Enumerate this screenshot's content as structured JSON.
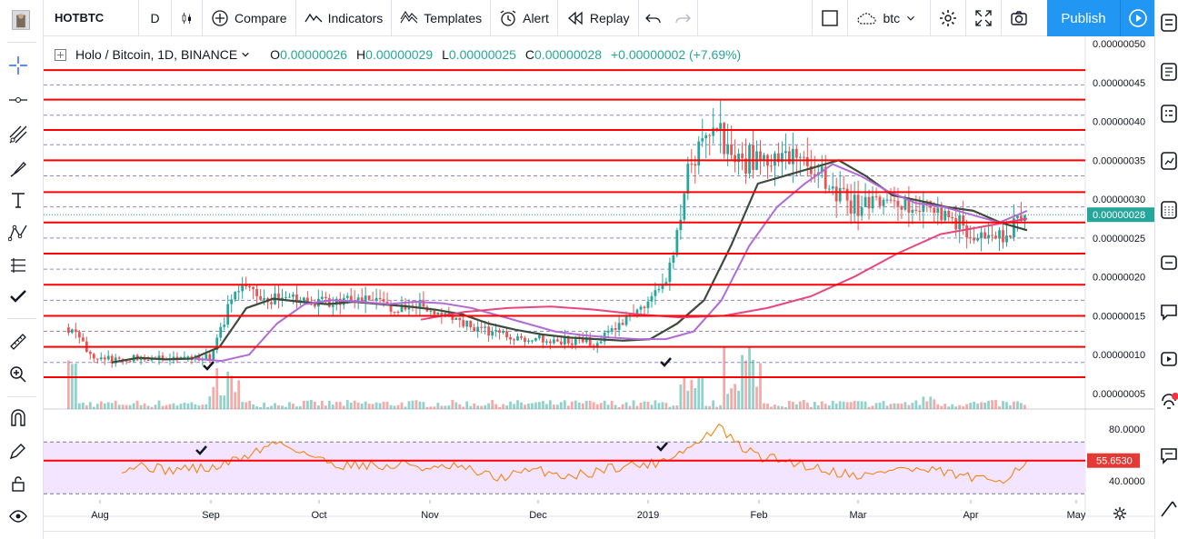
{
  "toolbar": {
    "symbol": "HOTBTC",
    "interval": "D",
    "compare": "Compare",
    "indicators": "Indicators",
    "templates": "Templates",
    "alert": "Alert",
    "replay": "Replay",
    "layout_name": "btc",
    "publish": "Publish"
  },
  "legend": {
    "title": "Holo / Bitcoin, 1D, BINANCE",
    "o_label": "O",
    "o": "0.00000026",
    "h_label": "H",
    "h": "0.00000029",
    "l_label": "L",
    "l": "0.00000025",
    "c_label": "C",
    "c": "0.00000028",
    "change": "+0.00000002 (+7.69%)"
  },
  "colors": {
    "accent": "#2196f3",
    "up": "#26a69a",
    "down": "#ef5350",
    "hline": "#ff0000",
    "dash": "#3f3fa8",
    "ma_fast": "#ffd600",
    "ma_dark": "#3d4b3a",
    "ma_purple": "#b26ad6",
    "ma_pink": "#e8467c",
    "rsi": "#f57c00",
    "rsi_band": "#f3e5ff",
    "price_badge": "#26a69a",
    "rsi_badge": "#e53935"
  },
  "chart_data": {
    "type": "candlestick",
    "symbol": "Holo / Bitcoin",
    "timeframe": "1D",
    "exchange": "BINANCE",
    "x_labels": [
      "Aug",
      "Sep",
      "Oct",
      "Nov",
      "Dec",
      "2019",
      "Feb",
      "Mar",
      "Apr",
      "May"
    ],
    "y_labels": [
      "0.00000050",
      "0.00000045",
      "0.00000040",
      "0.00000035",
      "0.00000030",
      "0.00000025",
      "0.00000020",
      "0.00000015",
      "0.00000010",
      "0.00000005"
    ],
    "y_range": [
      2e-08,
      5.1e-07
    ],
    "last_price": "0.00000028",
    "price_series_close": [
      1.35e-07,
      1e-07,
      9.2e-08,
      9.8e-08,
      9.5e-08,
      9.4e-08,
      9.8e-08,
      1.9e-07,
      1.75e-07,
      1.72e-07,
      1.68e-07,
      1.66e-07,
      1.7e-07,
      1.65e-07,
      1.6e-07,
      1.63e-07,
      1.5e-07,
      1.32e-07,
      1.28e-07,
      1.22e-07,
      1.2e-07,
      1.18e-07,
      1.16e-07,
      1.4e-07,
      1.65e-07,
      1.9e-07,
      3.5e-07,
      4e-07,
      3.45e-07,
      3.6e-07,
      3.55e-07,
      3.45e-07,
      3.1e-07,
      2.9e-07,
      3e-07,
      2.9e-07,
      2.85e-07,
      2.75e-07,
      2.55e-07,
      2.5e-07,
      2.8e-07
    ],
    "horizontal_levels": [
      4.66e-07,
      4.28e-07,
      3.89e-07,
      3.5e-07,
      3.09e-07,
      2.7e-07,
      2.3e-07,
      1.9e-07,
      1.5e-07,
      1.1e-07,
      7.1e-08
    ],
    "dashed_levels": [
      4.47e-07,
      4.08e-07,
      3.7e-07,
      3.3e-07,
      2.9e-07,
      2.5e-07,
      2.1e-07,
      1.7e-07,
      1.3e-07,
      9e-08
    ],
    "ma_series": [
      {
        "values": [
          9e-08,
          9.6e-08,
          9.4e-08,
          9.5e-08,
          1.1e-07,
          1.6e-07,
          1.72e-07,
          1.68e-07,
          1.65e-07,
          1.68e-07,
          1.65e-07,
          1.62e-07,
          1.58e-07,
          1.52e-07,
          1.4e-07,
          1.32e-07,
          1.26e-07,
          1.22e-07,
          1.2e-07,
          1.18e-07,
          1.2e-07,
          1.4e-07,
          1.7e-07,
          2.4e-07,
          3.2e-07,
          3.3e-07,
          3.4e-07,
          3.5e-07,
          3.3e-07,
          3.05e-07,
          2.98e-07,
          2.9e-07,
          2.85e-07,
          2.7e-07,
          2.6e-07
        ]
      },
      {
        "values": [
          9.5e-08,
          9.2e-08,
          1e-07,
          1.4e-07,
          1.65e-07,
          1.7e-07,
          1.68e-07,
          1.65e-07,
          1.68e-07,
          1.66e-07,
          1.6e-07,
          1.5e-07,
          1.4e-07,
          1.3e-07,
          1.25e-07,
          1.22e-07,
          1.2e-07,
          1.2e-07,
          1.3e-07,
          1.7e-07,
          2.4e-07,
          2.9e-07,
          3.2e-07,
          3.45e-07,
          3.3e-07,
          3.1e-07,
          2.95e-07,
          2.9e-07,
          2.8e-07,
          2.7e-07,
          2.85e-07
        ]
      },
      {
        "values": [
          1.45e-07,
          1.55e-07,
          1.6e-07,
          1.62e-07,
          1.58e-07,
          1.52e-07,
          1.48e-07,
          1.5e-07,
          1.6e-07,
          1.75e-07,
          2e-07,
          2.3e-07,
          2.55e-07,
          2.65e-07,
          2.75e-07
        ]
      }
    ],
    "volume": {
      "label": "Volume"
    },
    "rsi": {
      "y_labels": [
        "80.0000",
        "40.0000"
      ],
      "value": "55.6530",
      "level_line": 55.65,
      "upper_band": 70,
      "lower_band": 30,
      "values": [
        50,
        52,
        48,
        50,
        49,
        55,
        62,
        70,
        64,
        56,
        52,
        53,
        50,
        54,
        48,
        51,
        47,
        42,
        46,
        48,
        44,
        45,
        50,
        52,
        53,
        60,
        68,
        82,
        66,
        58,
        56,
        52,
        48,
        45,
        44,
        50,
        48,
        47,
        44,
        40,
        42,
        56
      ]
    }
  }
}
